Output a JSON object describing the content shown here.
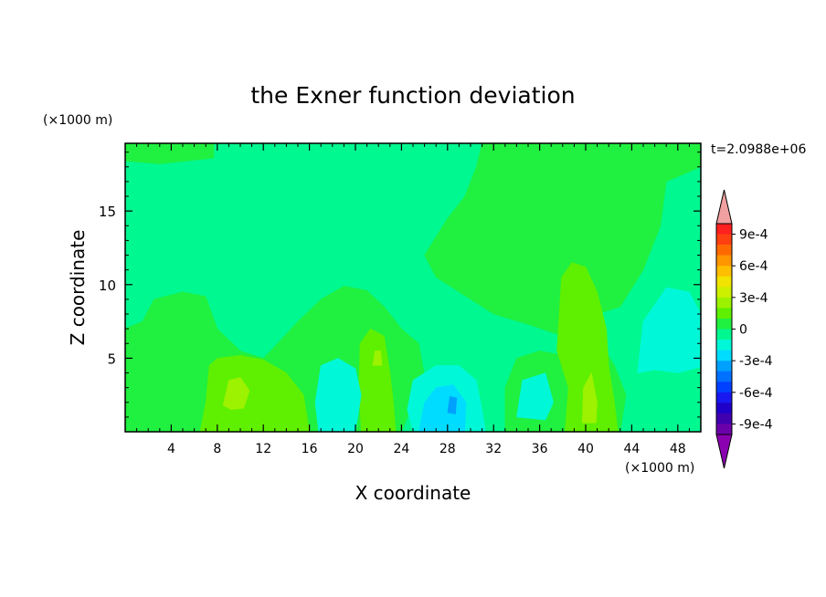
{
  "chart_data": {
    "type": "heatmap",
    "title": "the Exner function deviation",
    "xlabel": "X coordinate",
    "ylabel": "Z coordinate",
    "x_unit": "(×1000 m)",
    "y_unit": "(×1000 m)",
    "time_label": "t=2.0988e+06",
    "xlim": [
      0,
      50
    ],
    "ylim": [
      0,
      19.6
    ],
    "x_ticks": [
      4,
      8,
      12,
      16,
      20,
      24,
      28,
      32,
      36,
      40,
      44,
      48
    ],
    "y_ticks": [
      5,
      10,
      15
    ],
    "grid": false,
    "colorbar": {
      "position": "right",
      "tick_labels": [
        "9e-4",
        "6e-4",
        "3e-4",
        "0",
        "-3e-4",
        "-6e-4",
        "-9e-4"
      ],
      "levels": [
        {
          "from": 0.0009,
          "to": 0.001,
          "color": "#ff2020"
        },
        {
          "from": 0.0008,
          "to": 0.0009,
          "color": "#ff4010"
        },
        {
          "from": 0.0007,
          "to": 0.0008,
          "color": "#ff6a00"
        },
        {
          "from": 0.0006,
          "to": 0.0007,
          "color": "#ff9600"
        },
        {
          "from": 0.0005,
          "to": 0.0006,
          "color": "#ffbe00"
        },
        {
          "from": 0.0004,
          "to": 0.0005,
          "color": "#f0e400"
        },
        {
          "from": 0.0003,
          "to": 0.0004,
          "color": "#cdf000"
        },
        {
          "from": 0.0002,
          "to": 0.0003,
          "color": "#9cf200"
        },
        {
          "from": 0.0001,
          "to": 0.0002,
          "color": "#5ef000"
        },
        {
          "from": 0.0,
          "to": 0.0001,
          "color": "#20f040"
        },
        {
          "from": -0.0001,
          "to": 0.0,
          "color": "#00f890"
        },
        {
          "from": -0.0002,
          "to": -0.0001,
          "color": "#00f8d8"
        },
        {
          "from": -0.0003,
          "to": -0.0002,
          "color": "#00dcff"
        },
        {
          "from": -0.0004,
          "to": -0.0003,
          "color": "#00a0ff"
        },
        {
          "from": -0.0005,
          "to": -0.0004,
          "color": "#0070ff"
        },
        {
          "from": -0.0006,
          "to": -0.0005,
          "color": "#0040ff"
        },
        {
          "from": -0.0007,
          "to": -0.0006,
          "color": "#1818f0"
        },
        {
          "from": -0.0008,
          "to": -0.0007,
          "color": "#2000c8"
        },
        {
          "from": -0.0009,
          "to": -0.0008,
          "color": "#4000b0"
        },
        {
          "from": -0.001,
          "to": -0.0009,
          "color": "#6a00a8"
        }
      ],
      "over_color": "#f0a0a0",
      "under_color": "#8a00b0"
    },
    "regions": [
      {
        "label": "upper-field",
        "value": -5e-05,
        "color": "#00f890",
        "polygon": [
          [
            0,
            19.6
          ],
          [
            50,
            19.6
          ],
          [
            50,
            0
          ],
          [
            0,
            0
          ]
        ]
      },
      {
        "label": "top-left-band",
        "value": 5e-05,
        "color": "#20f040",
        "polygon": [
          [
            0,
            19.6
          ],
          [
            7.7,
            19.6
          ],
          [
            7.7,
            18.6
          ],
          [
            3,
            18.2
          ],
          [
            0,
            18.4
          ]
        ]
      },
      {
        "label": "central-upper-positive",
        "value": 5e-05,
        "color": "#20f040",
        "polygon": [
          [
            31,
            19.6
          ],
          [
            50,
            19.6
          ],
          [
            50,
            18
          ],
          [
            47,
            17
          ],
          [
            46.5,
            14
          ],
          [
            45,
            11
          ],
          [
            43,
            8.5
          ],
          [
            41,
            8
          ],
          [
            38,
            6.5
          ],
          [
            35,
            7.3
          ],
          [
            32,
            8
          ],
          [
            29,
            9.5
          ],
          [
            27,
            10.5
          ],
          [
            26,
            12
          ],
          [
            28,
            14.5
          ],
          [
            29.5,
            16
          ],
          [
            30.5,
            18
          ]
        ]
      },
      {
        "label": "lower-left-positive",
        "value": 5e-05,
        "color": "#20f040",
        "polygon": [
          [
            0,
            0
          ],
          [
            0,
            7
          ],
          [
            1.5,
            7.5
          ],
          [
            2.5,
            9
          ],
          [
            5,
            9.5
          ],
          [
            7,
            9.2
          ],
          [
            8,
            7
          ],
          [
            10,
            5.5
          ],
          [
            12,
            5
          ],
          [
            13,
            5.8
          ],
          [
            15,
            7.5
          ],
          [
            17,
            9
          ],
          [
            19,
            9.9
          ],
          [
            21,
            9.6
          ],
          [
            22.5,
            8.5
          ],
          [
            24,
            7
          ],
          [
            25.5,
            6
          ],
          [
            26,
            3.8
          ],
          [
            24,
            0
          ]
        ]
      },
      {
        "label": "mid-positive",
        "value": 5e-05,
        "color": "#20f040",
        "polygon": [
          [
            33,
            0
          ],
          [
            33,
            3
          ],
          [
            34,
            5
          ],
          [
            36,
            5.5
          ],
          [
            38,
            5.2
          ],
          [
            39,
            7
          ],
          [
            41,
            6.5
          ],
          [
            42.5,
            4.5
          ],
          [
            43.5,
            2.5
          ],
          [
            43,
            0
          ]
        ]
      },
      {
        "label": "yellowgreen-a",
        "value": 0.00015,
        "color": "#5ef000",
        "polygon": [
          [
            6.5,
            0
          ],
          [
            7,
            2
          ],
          [
            7.3,
            4.5
          ],
          [
            8,
            5
          ],
          [
            10,
            5.2
          ],
          [
            12,
            4.9
          ],
          [
            14,
            4
          ],
          [
            15.5,
            2.5
          ],
          [
            16,
            0
          ]
        ]
      },
      {
        "label": "yellowgreen-b",
        "value": 0.00015,
        "color": "#5ef000",
        "polygon": [
          [
            20.5,
            0
          ],
          [
            20.3,
            3
          ],
          [
            20.4,
            6
          ],
          [
            21.3,
            7
          ],
          [
            22.5,
            6.5
          ],
          [
            23,
            4
          ],
          [
            23.3,
            2
          ],
          [
            23.5,
            0
          ]
        ]
      },
      {
        "label": "yellowgreen-c",
        "value": 0.00015,
        "color": "#5ef000",
        "polygon": [
          [
            38.2,
            0
          ],
          [
            38.5,
            3
          ],
          [
            37.5,
            5.5
          ],
          [
            37.7,
            8
          ],
          [
            37.9,
            10.5
          ],
          [
            38.8,
            11.5
          ],
          [
            40,
            11.2
          ],
          [
            41,
            9.5
          ],
          [
            41.8,
            7
          ],
          [
            42,
            4.5
          ],
          [
            42.5,
            2
          ],
          [
            42.8,
            0
          ]
        ]
      },
      {
        "label": "yellow-a",
        "value": 0.00025,
        "color": "#9cf200",
        "polygon": [
          [
            8.5,
            1.8
          ],
          [
            9,
            3.5
          ],
          [
            10,
            3.7
          ],
          [
            10.8,
            2.8
          ],
          [
            10.3,
            1.6
          ],
          [
            9.2,
            1.5
          ]
        ]
      },
      {
        "label": "yellow-b",
        "value": 0.00025,
        "color": "#9cf200",
        "polygon": [
          [
            21.5,
            4.5
          ],
          [
            21.7,
            5.5
          ],
          [
            22.2,
            5.5
          ],
          [
            22.3,
            4.5
          ]
        ]
      },
      {
        "label": "yellow-c",
        "value": 0.00025,
        "color": "#9cf200",
        "polygon": [
          [
            39.7,
            0.6
          ],
          [
            39.8,
            3
          ],
          [
            40.5,
            4
          ],
          [
            41,
            2
          ],
          [
            40.9,
            0.6
          ]
        ]
      },
      {
        "label": "cyan-a",
        "value": -0.00015,
        "color": "#00f8d8",
        "polygon": [
          [
            16.8,
            0
          ],
          [
            16.5,
            2
          ],
          [
            17,
            4.5
          ],
          [
            18.5,
            5
          ],
          [
            20,
            4.3
          ],
          [
            20.5,
            2.5
          ],
          [
            20,
            0
          ]
        ]
      },
      {
        "label": "cyan-b",
        "value": -0.00015,
        "color": "#00f8d8",
        "polygon": [
          [
            25,
            0
          ],
          [
            24.5,
            1.5
          ],
          [
            25,
            3.5
          ],
          [
            27,
            4.5
          ],
          [
            29,
            4.5
          ],
          [
            30.5,
            3.5
          ],
          [
            31,
            1.5
          ],
          [
            31.3,
            0
          ]
        ]
      },
      {
        "label": "cyan-c",
        "value": -0.00015,
        "color": "#00f8d8",
        "polygon": [
          [
            44.5,
            4
          ],
          [
            45,
            7.5
          ],
          [
            47,
            9.8
          ],
          [
            49,
            9.5
          ],
          [
            50,
            8
          ],
          [
            50,
            4.4
          ],
          [
            48,
            4
          ],
          [
            46,
            4.2
          ]
        ]
      },
      {
        "label": "cyan-d",
        "value": -0.00015,
        "color": "#00f8d8",
        "polygon": [
          [
            34,
            1
          ],
          [
            34.5,
            3.5
          ],
          [
            36.5,
            4
          ],
          [
            37.2,
            2
          ],
          [
            36.5,
            0.8
          ]
        ]
      },
      {
        "label": "lightblue-a",
        "value": -0.00025,
        "color": "#00dcff",
        "polygon": [
          [
            25.5,
            0
          ],
          [
            26,
            2
          ],
          [
            27,
            3
          ],
          [
            28.5,
            3.2
          ],
          [
            29.6,
            2
          ],
          [
            29.5,
            0
          ]
        ]
      },
      {
        "label": "blue-spot",
        "value": -0.00035,
        "color": "#00a0ff",
        "polygon": [
          [
            28,
            1.3
          ],
          [
            28.2,
            2.4
          ],
          [
            28.8,
            2.3
          ],
          [
            28.7,
            1.2
          ]
        ]
      }
    ]
  }
}
